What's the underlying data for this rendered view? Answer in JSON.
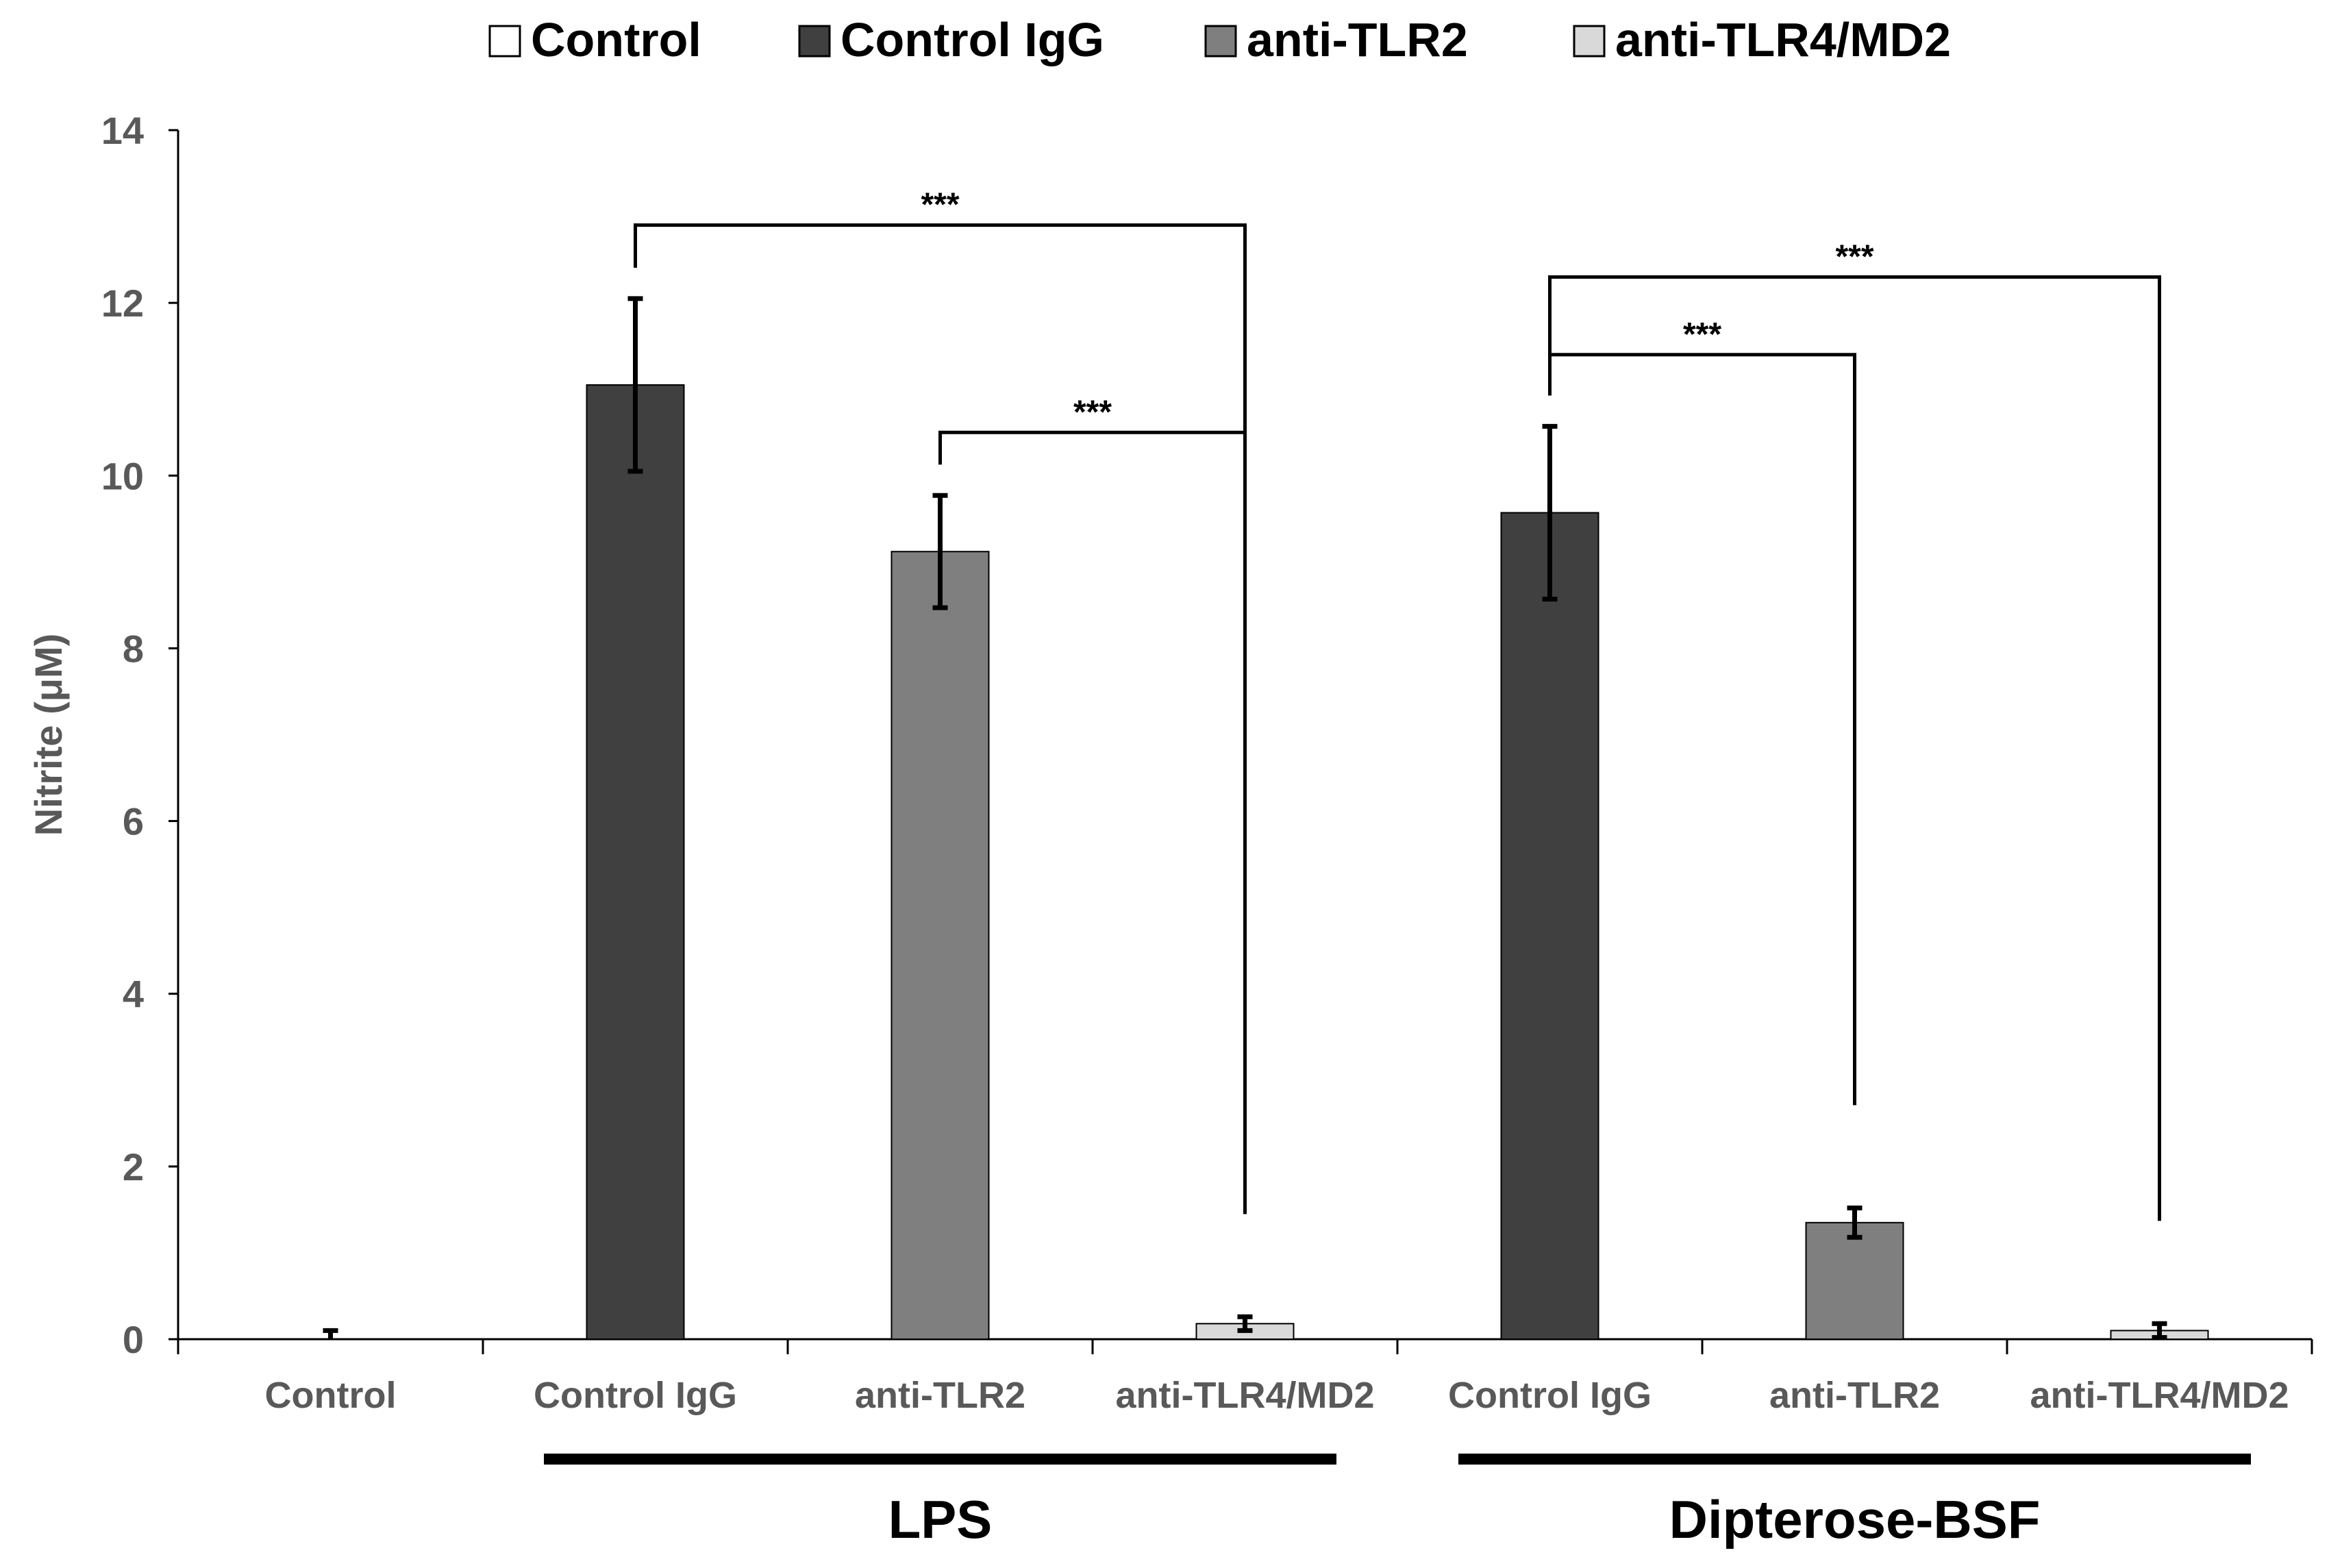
{
  "chart_data": {
    "type": "bar",
    "ylabel": "Nitrite  (μM)",
    "ylim": [
      0,
      14
    ],
    "yticks": [
      0,
      2,
      4,
      6,
      8,
      10,
      12,
      14
    ],
    "ytick_labels": [
      "0",
      "2",
      "4",
      "6",
      "8",
      "10",
      "12",
      "14"
    ],
    "legend": [
      {
        "label": "Control",
        "color": "#ffffff"
      },
      {
        "label": "Control IgG",
        "color": "#404040"
      },
      {
        "label": "anti-TLR2",
        "color": "#7f7f7f"
      },
      {
        "label": "anti-TLR4/MD2",
        "color": "#d9d9d9"
      }
    ],
    "categories": [
      "Control",
      "Control IgG",
      "anti-TLR2",
      "anti-TLR4/MD2",
      "Control IgG",
      "anti-TLR2",
      "anti-TLR4/MD2"
    ],
    "bars": [
      {
        "category": "Control",
        "series": "Control",
        "value": 0.0,
        "error": 0.1,
        "color": "#ffffff"
      },
      {
        "category": "Control IgG",
        "series": "Control IgG",
        "value": 11.05,
        "error": 1.0,
        "color": "#404040"
      },
      {
        "category": "anti-TLR2",
        "series": "anti-TLR2",
        "value": 9.12,
        "error": 0.65,
        "color": "#7f7f7f"
      },
      {
        "category": "anti-TLR4/MD2",
        "series": "anti-TLR4/MD2",
        "value": 0.18,
        "error": 0.08,
        "color": "#d9d9d9"
      },
      {
        "category": "Control IgG",
        "series": "Control IgG",
        "value": 9.57,
        "error": 1.0,
        "color": "#404040"
      },
      {
        "category": "anti-TLR2",
        "series": "anti-TLR2",
        "value": 1.35,
        "error": 0.17,
        "color": "#7f7f7f"
      },
      {
        "category": "anti-TLR4/MD2",
        "series": "anti-TLR4/MD2",
        "value": 0.1,
        "error": 0.08,
        "color": "#d9d9d9"
      }
    ],
    "groups": [
      {
        "label": "LPS",
        "from": 1,
        "to": 3
      },
      {
        "label": "Dipterose-BSF",
        "from": 4,
        "to": 6
      }
    ],
    "significance": [
      {
        "from": 1,
        "to": 3,
        "label": "***",
        "y": 12.9
      },
      {
        "from": 2,
        "to": 3,
        "label": "***",
        "y": 10.5
      },
      {
        "from": 4,
        "to": 6,
        "label": "***",
        "y": 12.3
      },
      {
        "from": 4,
        "to": 5,
        "label": "***",
        "y": 11.4
      }
    ]
  }
}
